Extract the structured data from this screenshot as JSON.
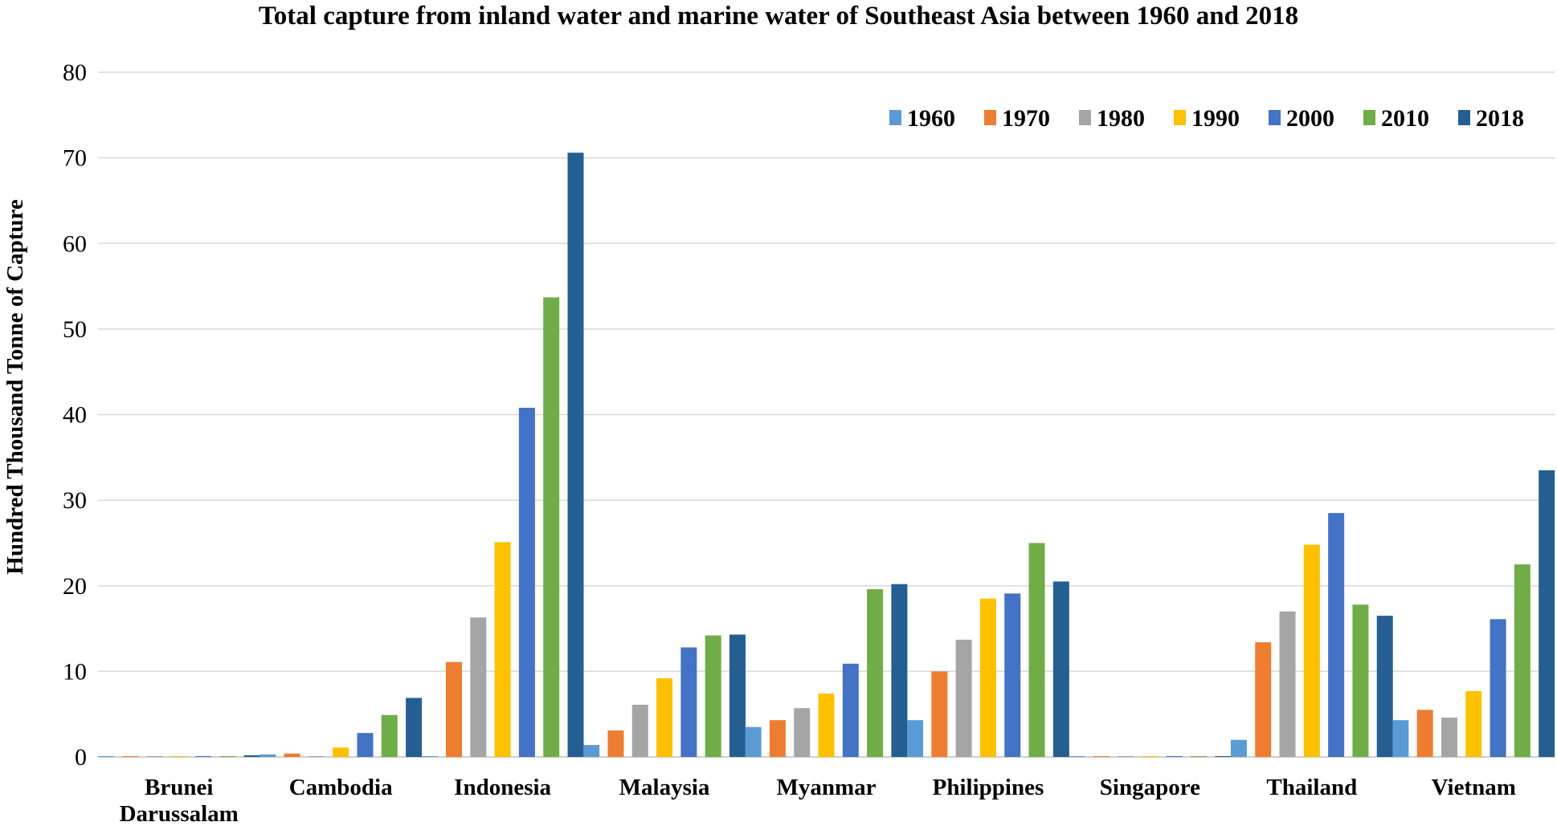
{
  "chart_data": {
    "type": "bar",
    "title": "Total capture from inland water and marine water of Southeast Asia between 1960 and 2018",
    "xlabel": "",
    "ylabel": "Hundred Thousand Tonne of Capture",
    "ylim": [
      0,
      80
    ],
    "yticks": [
      0,
      10,
      20,
      30,
      40,
      50,
      60,
      70,
      80
    ],
    "grid": true,
    "legend_position": "top-right",
    "categories": [
      [
        "Brunei",
        "Darussalam"
      ],
      [
        "Cambodia"
      ],
      [
        "Indonesia"
      ],
      [
        "Malaysia"
      ],
      [
        "Myanmar"
      ],
      [
        "Philippines"
      ],
      [
        "Singapore"
      ],
      [
        "Thailand"
      ],
      [
        "Vietnam"
      ]
    ],
    "series": [
      {
        "name": "1960",
        "color": "#5b9bd5",
        "values": [
          0.1,
          0.3,
          0.1,
          1.4,
          3.5,
          4.3,
          0.1,
          2.0,
          4.3
        ]
      },
      {
        "name": "1970",
        "color": "#ed7d31",
        "values": [
          0.1,
          0.4,
          11.1,
          3.1,
          4.3,
          10.0,
          0.1,
          13.4,
          5.5
        ]
      },
      {
        "name": "1980",
        "color": "#a5a5a5",
        "values": [
          0.1,
          0.1,
          16.3,
          6.1,
          5.7,
          13.7,
          0.1,
          17.0,
          4.6
        ]
      },
      {
        "name": "1990",
        "color": "#ffc000",
        "values": [
          0.1,
          1.1,
          25.1,
          9.2,
          7.4,
          18.5,
          0.1,
          24.8,
          7.7
        ]
      },
      {
        "name": "2000",
        "color": "#4472c4",
        "values": [
          0.1,
          2.8,
          40.8,
          12.8,
          10.9,
          19.1,
          0.1,
          28.5,
          16.1
        ]
      },
      {
        "name": "2010",
        "color": "#70ad47",
        "values": [
          0.1,
          4.9,
          53.7,
          14.2,
          19.6,
          25.0,
          0.1,
          17.8,
          22.5
        ]
      },
      {
        "name": "2018",
        "color": "#255e91",
        "values": [
          0.2,
          6.9,
          70.6,
          14.3,
          20.2,
          20.5,
          0.1,
          16.5,
          33.5
        ]
      }
    ]
  }
}
